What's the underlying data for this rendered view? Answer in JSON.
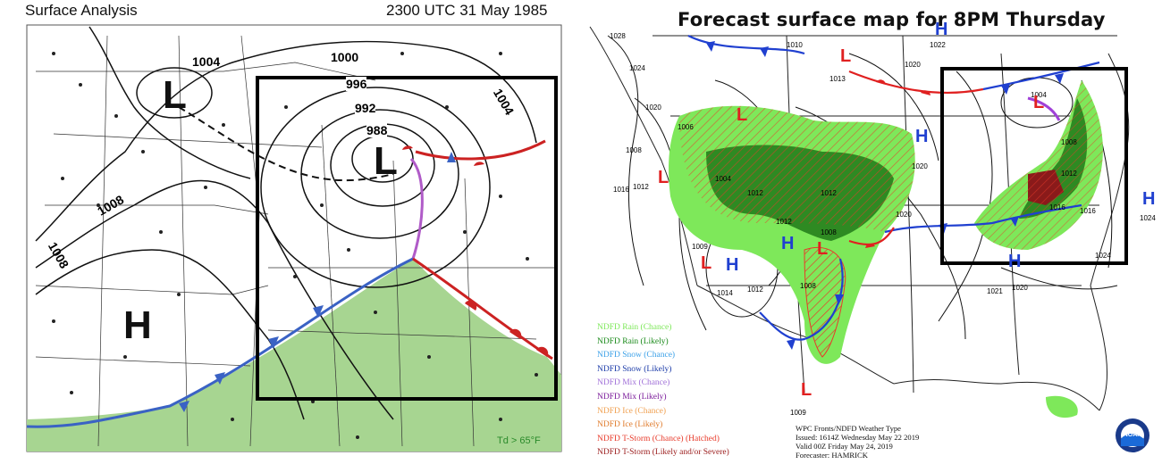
{
  "left_map": {
    "title": "Surface Analysis",
    "timestamp": "2300 UTC 31 May 1985",
    "isobar_labels": [
      "1004",
      "1000",
      "996",
      "992",
      "988",
      "1004",
      "1008",
      "1008"
    ],
    "pressure_centers": [
      {
        "symbol": "L"
      },
      {
        "symbol": "L"
      },
      {
        "symbol": "H"
      }
    ],
    "dewpoint_note": "Td > 65°F",
    "colors": {
      "warm_sector": "#a7d591",
      "warm_front": "#cc2222",
      "cold_front": "#3a62c4",
      "occluded_front": "#b05bc8",
      "box": "#000000"
    }
  },
  "right_map": {
    "title": "Forecast surface map for 8PM Thursday",
    "isobar_labels": [
      "1028",
      "1024",
      "1020",
      "1006",
      "1008",
      "1016",
      "1012",
      "1004",
      "1012",
      "1008",
      "1012",
      "1009",
      "1014",
      "1012",
      "1008",
      "1010",
      "1013",
      "1020",
      "1022",
      "1004",
      "1008",
      "1012",
      "1016",
      "1020",
      "1024",
      "1021",
      "1020",
      "1024",
      "1008",
      "1009",
      "1016"
    ],
    "pressure_centers": [
      {
        "symbol": "L"
      },
      {
        "symbol": "L"
      },
      {
        "symbol": "L"
      },
      {
        "symbol": "L"
      },
      {
        "symbol": "L"
      },
      {
        "symbol": "L"
      },
      {
        "symbol": "L"
      },
      {
        "symbol": "H"
      },
      {
        "symbol": "H"
      },
      {
        "symbol": "H"
      },
      {
        "symbol": "H"
      },
      {
        "symbol": "H"
      },
      {
        "symbol": "H"
      },
      {
        "symbol": "H"
      }
    ],
    "legend": [
      {
        "label": "NDFD Rain (Chance)",
        "color": "#7ee85a"
      },
      {
        "label": "NDFD Rain (Likely)",
        "color": "#1a8a1a"
      },
      {
        "label": "NDFD Snow (Chance)",
        "color": "#3aa0e8"
      },
      {
        "label": "NDFD Snow (Likely)",
        "color": "#1a3aa8"
      },
      {
        "label": "NDFD Mix (Chance)",
        "color": "#a070d8"
      },
      {
        "label": "NDFD Mix (Likely)",
        "color": "#7a1a9a"
      },
      {
        "label": "NDFD Ice (Chance)",
        "color": "#f0a050"
      },
      {
        "label": "NDFD Ice (Likely)",
        "color": "#e07a2a"
      },
      {
        "label": "NDFD T-Storm (Chance) (Hatched)",
        "color": "#e83a2a"
      },
      {
        "label": "NDFD T-Storm (Likely and/or Severe)",
        "color": "#9a1a1a"
      }
    ],
    "info_lines": [
      "WPC Fronts/NDFD Weather Type",
      "Issued: 1614Z Wednesday May 22 2019",
      "Valid 00Z Friday May 24, 2019",
      "Forecaster: HAMRICK"
    ],
    "logo": "NOAA",
    "colors": {
      "rain_chance": "#7ee85a",
      "rain_likely": "#2e8a22",
      "tstorm_likely": "#8a1a1a",
      "warm_front": "#e02020",
      "cold_front": "#2040d0",
      "box": "#000000"
    }
  }
}
